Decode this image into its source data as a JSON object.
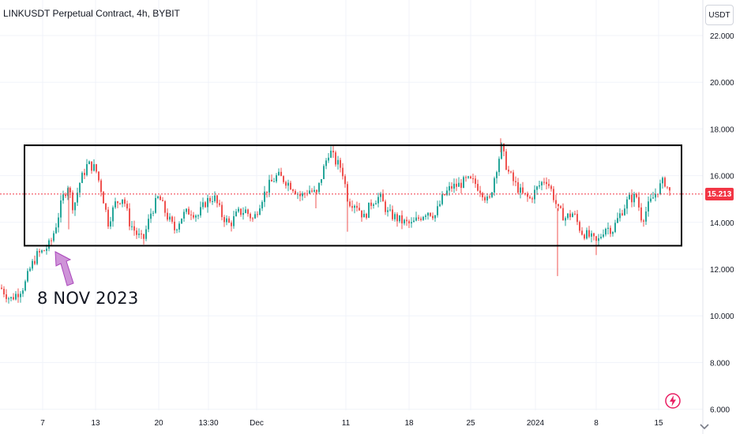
{
  "header": {
    "title": "LINKUSDT Perpetual Contract, 4h, BYBIT"
  },
  "price_axis": {
    "unit_button": "USDT",
    "current_price_label": "15.213"
  },
  "annotation": {
    "label": "8 NOV 2023"
  },
  "icons": {
    "settings": "bolt-circle-icon",
    "scroll": "chevron-down-icon"
  },
  "colors": {
    "up": "#26a69a",
    "down": "#ef5350",
    "price_line": "#f23645",
    "annotation_arrow": "#ce93d8",
    "box": "#000000"
  },
  "chart_data": {
    "type": "candlestick",
    "title": "LINKUSDT Perpetual Contract, 4h, BYBIT",
    "ylim": [
      6,
      23
    ],
    "y_ticks": [
      "22.000",
      "20.000",
      "18.000",
      "16.000",
      "14.000",
      "12.000",
      "10.000",
      "8.000",
      "6.000"
    ],
    "x_ticks": [
      "7",
      "13",
      "20",
      "13:30",
      "Dec",
      "11",
      "18",
      "25",
      "2024",
      "8",
      "15"
    ],
    "last_price": 15.213,
    "range_box": {
      "low": 13.0,
      "high": 17.3
    },
    "price_path": [
      [
        0,
        11.2
      ],
      [
        12,
        10.7
      ],
      [
        22,
        11.0
      ],
      [
        30,
        11.3
      ],
      [
        38,
        12.1
      ],
      [
        46,
        12.6
      ],
      [
        55,
        12.8
      ],
      [
        63,
        13.1
      ],
      [
        70,
        13.9
      ],
      [
        78,
        15.0
      ],
      [
        85,
        15.6
      ],
      [
        92,
        14.6
      ],
      [
        100,
        15.7
      ],
      [
        110,
        16.5
      ],
      [
        120,
        16.3
      ],
      [
        128,
        15.3
      ],
      [
        136,
        14.0
      ],
      [
        145,
        14.8
      ],
      [
        155,
        15.1
      ],
      [
        163,
        14.0
      ],
      [
        172,
        13.5
      ],
      [
        180,
        13.2
      ],
      [
        190,
        14.4
      ],
      [
        200,
        15.1
      ],
      [
        210,
        14.3
      ],
      [
        220,
        13.7
      ],
      [
        230,
        14.3
      ],
      [
        240,
        14.5
      ],
      [
        250,
        14.3
      ],
      [
        260,
        14.9
      ],
      [
        270,
        15.1
      ],
      [
        280,
        14.3
      ],
      [
        290,
        13.9
      ],
      [
        300,
        14.4
      ],
      [
        310,
        14.5
      ],
      [
        320,
        14.1
      ],
      [
        330,
        15.0
      ],
      [
        340,
        15.6
      ],
      [
        350,
        16.0
      ],
      [
        360,
        15.8
      ],
      [
        370,
        15.5
      ],
      [
        380,
        15.1
      ],
      [
        390,
        15.4
      ],
      [
        400,
        15.2
      ],
      [
        408,
        16.2
      ],
      [
        416,
        17.1
      ],
      [
        424,
        16.6
      ],
      [
        432,
        16.3
      ],
      [
        440,
        14.9
      ],
      [
        450,
        14.8
      ],
      [
        460,
        14.2
      ],
      [
        470,
        14.9
      ],
      [
        480,
        15.1
      ],
      [
        490,
        14.4
      ],
      [
        500,
        14.2
      ],
      [
        510,
        14.0
      ],
      [
        520,
        13.9
      ],
      [
        530,
        14.2
      ],
      [
        540,
        14.5
      ],
      [
        550,
        14.3
      ],
      [
        560,
        15.1
      ],
      [
        570,
        15.5
      ],
      [
        580,
        15.6
      ],
      [
        590,
        15.8
      ],
      [
        600,
        15.7
      ],
      [
        610,
        15.3
      ],
      [
        618,
        14.8
      ],
      [
        626,
        16.1
      ],
      [
        634,
        17.2
      ],
      [
        642,
        16.2
      ],
      [
        650,
        15.7
      ],
      [
        660,
        15.2
      ],
      [
        670,
        15.0
      ],
      [
        680,
        15.5
      ],
      [
        690,
        15.9
      ],
      [
        698,
        15.3
      ],
      [
        706,
        14.5
      ],
      [
        715,
        14.2
      ],
      [
        725,
        14.4
      ],
      [
        735,
        13.6
      ],
      [
        745,
        13.4
      ],
      [
        755,
        13.1
      ],
      [
        765,
        13.8
      ],
      [
        775,
        13.7
      ],
      [
        785,
        14.4
      ],
      [
        795,
        15.0
      ],
      [
        805,
        15.1
      ],
      [
        812,
        14.1
      ],
      [
        820,
        14.7
      ],
      [
        830,
        15.3
      ],
      [
        840,
        15.8
      ],
      [
        848,
        15.2
      ]
    ]
  }
}
